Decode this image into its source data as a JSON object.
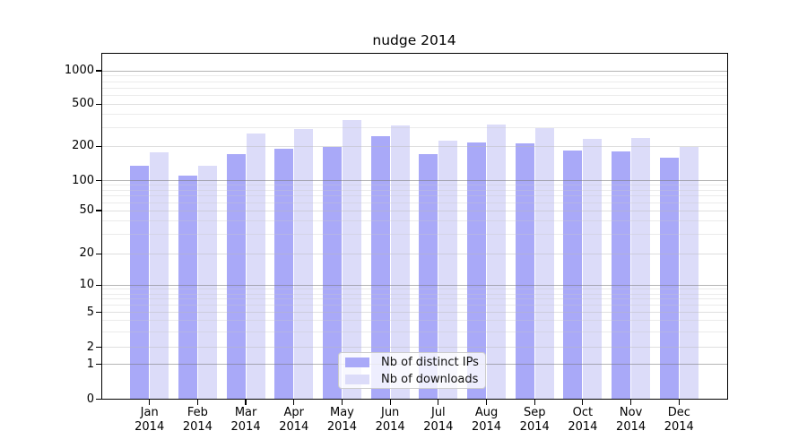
{
  "chart_data": {
    "type": "bar",
    "title": "nudge 2014",
    "categories": [
      "Jan 2014",
      "Feb 2014",
      "Mar 2014",
      "Apr 2014",
      "May 2014",
      "Jun 2014",
      "Jul 2014",
      "Aug 2014",
      "Sep 2014",
      "Oct 2014",
      "Nov 2014",
      "Dec 2014"
    ],
    "series": [
      {
        "name": "Nb of distinct IPs",
        "color": "#a9a9f8",
        "values": [
          135,
          110,
          170,
          192,
          196,
          250,
          170,
          217,
          212,
          184,
          182,
          159
        ]
      },
      {
        "name": "Nb of downloads",
        "color": "#dcdcf9",
        "values": [
          177,
          135,
          263,
          290,
          353,
          314,
          226,
          324,
          298,
          237,
          240,
          196
        ]
      }
    ],
    "yscale": "symlog",
    "yticks": [
      0,
      1,
      2,
      5,
      10,
      20,
      50,
      100,
      200,
      500,
      1000
    ],
    "grid": "both",
    "legend_position": "lower center"
  },
  "y_axis": {
    "tick_labels": [
      "0",
      "1",
      "2",
      "5",
      "10",
      "20",
      "50",
      "100",
      "200",
      "500",
      "1000"
    ]
  },
  "x_axis": {
    "months": [
      "Jan",
      "Feb",
      "Mar",
      "Apr",
      "May",
      "Jun",
      "Jul",
      "Aug",
      "Sep",
      "Oct",
      "Nov",
      "Dec"
    ],
    "year": "2014"
  }
}
